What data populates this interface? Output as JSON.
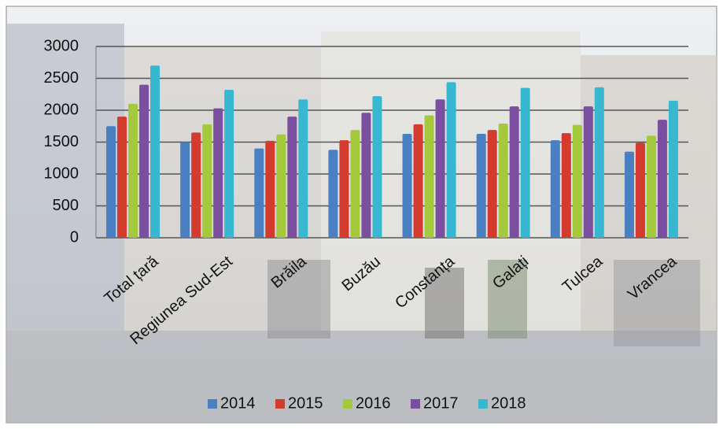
{
  "chart_data": {
    "type": "bar",
    "categories": [
      "Total țară",
      "Regiunea Sud-Est",
      "Brăila",
      "Buzău",
      "Constanța",
      "Galați",
      "Tulcea",
      "Vrancea"
    ],
    "series": [
      {
        "name": "2014",
        "color": "#4a7fc1",
        "values": [
          1750,
          1500,
          1400,
          1380,
          1630,
          1630,
          1530,
          1350
        ]
      },
      {
        "name": "2015",
        "color": "#d23b2e",
        "values": [
          1900,
          1650,
          1520,
          1530,
          1780,
          1690,
          1640,
          1490
        ]
      },
      {
        "name": "2016",
        "color": "#a4c93d",
        "values": [
          2100,
          1780,
          1620,
          1690,
          1920,
          1790,
          1770,
          1600
        ]
      },
      {
        "name": "2017",
        "color": "#7b4fa0",
        "values": [
          2400,
          2030,
          1900,
          1960,
          2170,
          2060,
          2060,
          1850
        ]
      },
      {
        "name": "2018",
        "color": "#38b7d1",
        "values": [
          2700,
          2320,
          2170,
          2220,
          2440,
          2350,
          2360,
          2150
        ]
      }
    ],
    "ylim": [
      0,
      3000
    ],
    "yticks": [
      0,
      500,
      1000,
      1500,
      2000,
      2500,
      3000
    ],
    "grid": true,
    "legend": "bottom"
  }
}
